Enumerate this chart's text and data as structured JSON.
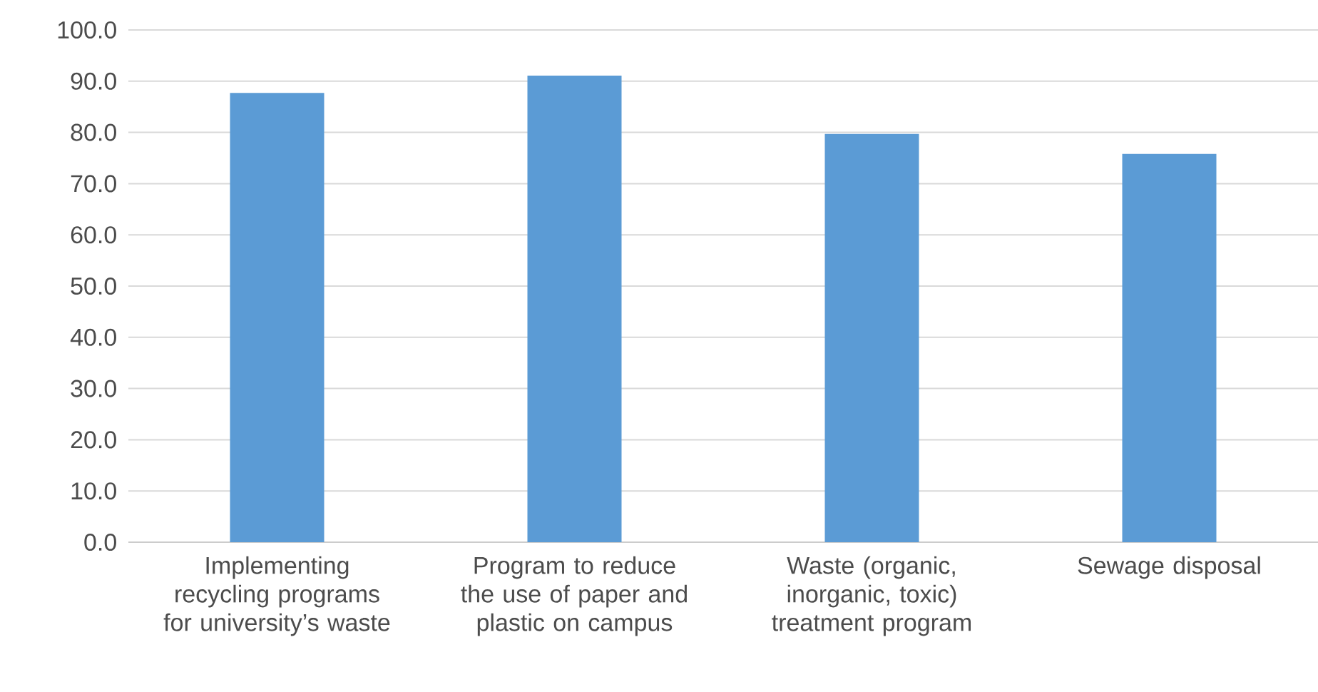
{
  "chart_data": {
    "type": "bar",
    "categories": [
      "Implementing recycling programs for university’s waste",
      "Program to reduce the use of  paper and plastic on campus",
      "Waste (organic, inorganic, toxic) treatment program",
      "Sewage disposal"
    ],
    "values": [
      87.7,
      91.1,
      79.7,
      75.8
    ],
    "color": "#5b9bd5",
    "ylim": [
      0,
      100
    ],
    "yticks": [
      {
        "value": 0,
        "label": "0.0"
      },
      {
        "value": 10,
        "label": "10.0"
      },
      {
        "value": 20,
        "label": "20.0"
      },
      {
        "value": 30,
        "label": "30.0"
      },
      {
        "value": 40,
        "label": "40.0"
      },
      {
        "value": 50,
        "label": "50.0"
      },
      {
        "value": 60,
        "label": "60.0"
      },
      {
        "value": 70,
        "label": "70.0"
      },
      {
        "value": 80,
        "label": "80.0"
      },
      {
        "value": 90,
        "label": "90.0"
      },
      {
        "value": 100,
        "label": "100.0"
      }
    ],
    "grid": "y"
  }
}
